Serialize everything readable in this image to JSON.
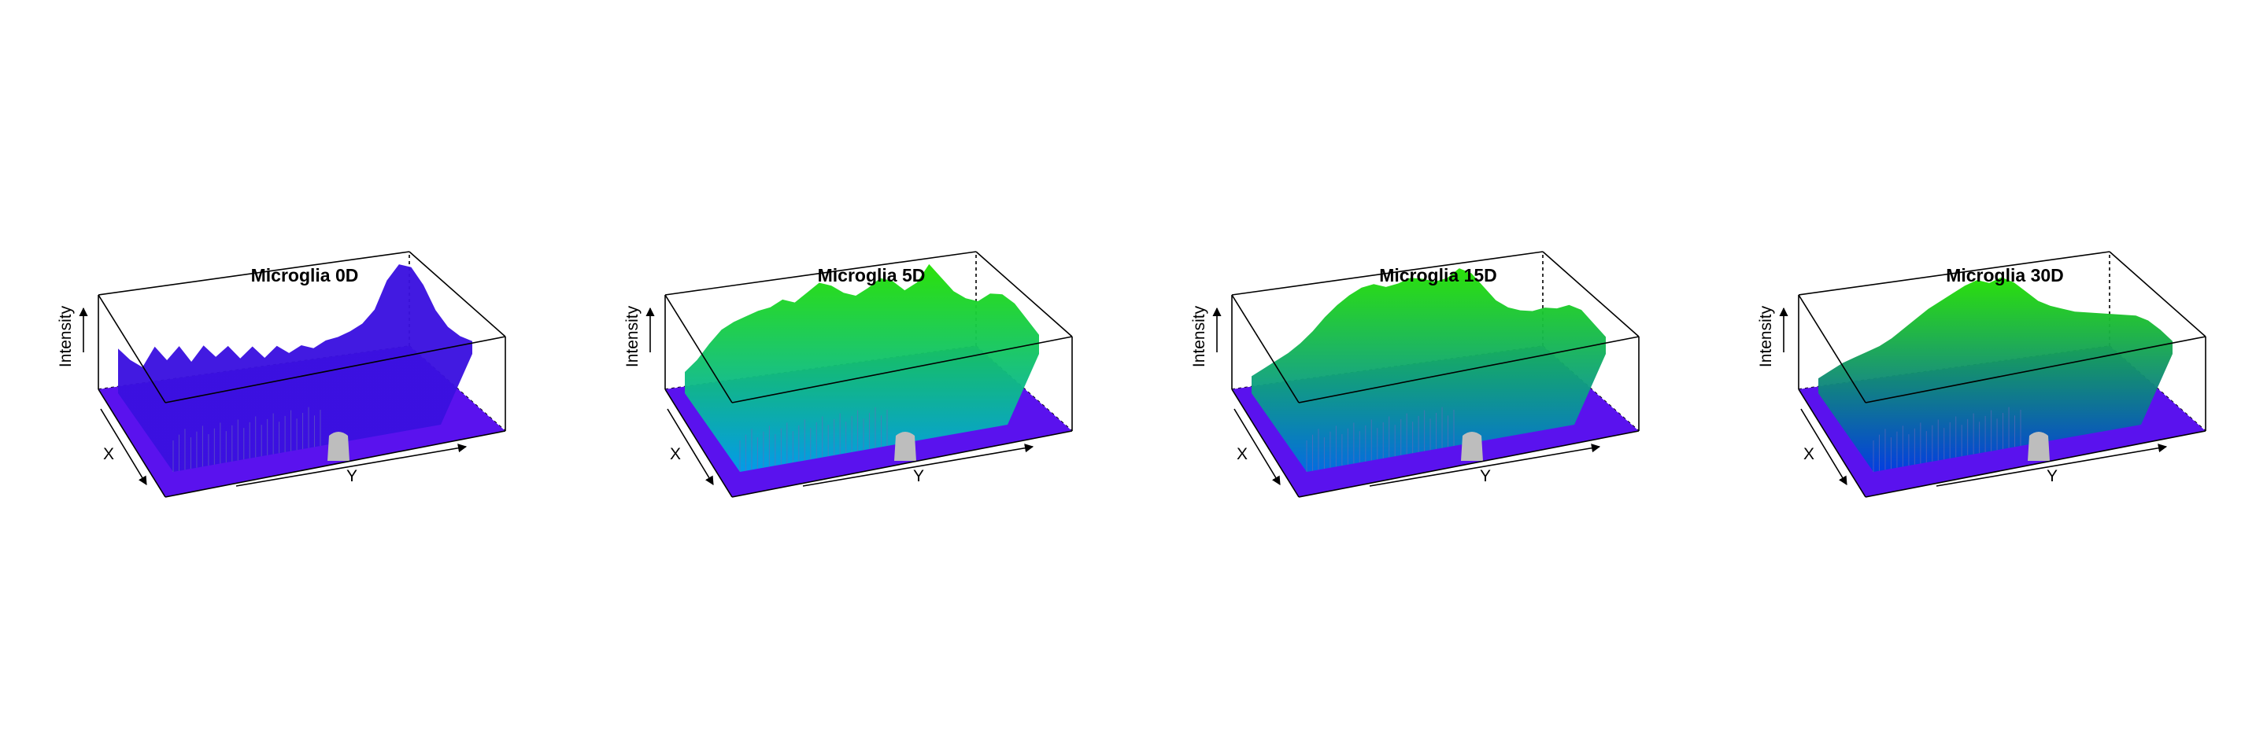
{
  "chart_data": [
    {
      "type": "surface3d",
      "title": "Microglia 0D",
      "xlabel": "X",
      "ylabel": "Y",
      "zlabel": "Intensity",
      "ridge": [
        0.42,
        0.3,
        0.22,
        0.4,
        0.26,
        0.38,
        0.22,
        0.36,
        0.24,
        0.33,
        0.2,
        0.3,
        0.18,
        0.28,
        0.2,
        0.26,
        0.22,
        0.28,
        0.3,
        0.34,
        0.4,
        0.52,
        0.78,
        0.92,
        0.88,
        0.7,
        0.45,
        0.28,
        0.18,
        0.12
      ],
      "low_color": "#3a10e0",
      "high_color": "#3a10e0"
    },
    {
      "type": "surface3d",
      "title": "Microglia 5D",
      "xlabel": "X",
      "ylabel": "Y",
      "zlabel": "Intensity",
      "ridge": [
        0.2,
        0.3,
        0.44,
        0.56,
        0.62,
        0.66,
        0.7,
        0.72,
        0.78,
        0.74,
        0.82,
        0.9,
        0.86,
        0.78,
        0.74,
        0.8,
        0.88,
        0.84,
        0.74,
        0.8,
        0.96,
        0.82,
        0.68,
        0.6,
        0.56,
        0.62,
        0.6,
        0.5,
        0.34,
        0.18
      ],
      "low_color": "#00a0e8",
      "high_color": "#22e000"
    },
    {
      "type": "surface3d",
      "title": "Microglia 15D",
      "xlabel": "X",
      "ylabel": "Y",
      "zlabel": "Intensity",
      "ridge": [
        0.16,
        0.22,
        0.28,
        0.34,
        0.42,
        0.52,
        0.64,
        0.74,
        0.82,
        0.88,
        0.9,
        0.86,
        0.88,
        0.92,
        0.9,
        0.86,
        0.88,
        0.96,
        0.9,
        0.76,
        0.62,
        0.54,
        0.5,
        0.48,
        0.5,
        0.48,
        0.5,
        0.44,
        0.3,
        0.16
      ],
      "low_color": "#0070e0",
      "high_color": "#22e000"
    },
    {
      "type": "surface3d",
      "title": "Microglia 30D",
      "xlabel": "X",
      "ylabel": "Y",
      "zlabel": "Intensity",
      "ridge": [
        0.14,
        0.2,
        0.26,
        0.3,
        0.34,
        0.38,
        0.44,
        0.52,
        0.6,
        0.68,
        0.74,
        0.8,
        0.86,
        0.9,
        0.86,
        0.9,
        0.84,
        0.74,
        0.64,
        0.58,
        0.54,
        0.5,
        0.48,
        0.46,
        0.44,
        0.42,
        0.4,
        0.34,
        0.24,
        0.12
      ],
      "low_color": "#0040e0",
      "high_color": "#22e000"
    }
  ]
}
